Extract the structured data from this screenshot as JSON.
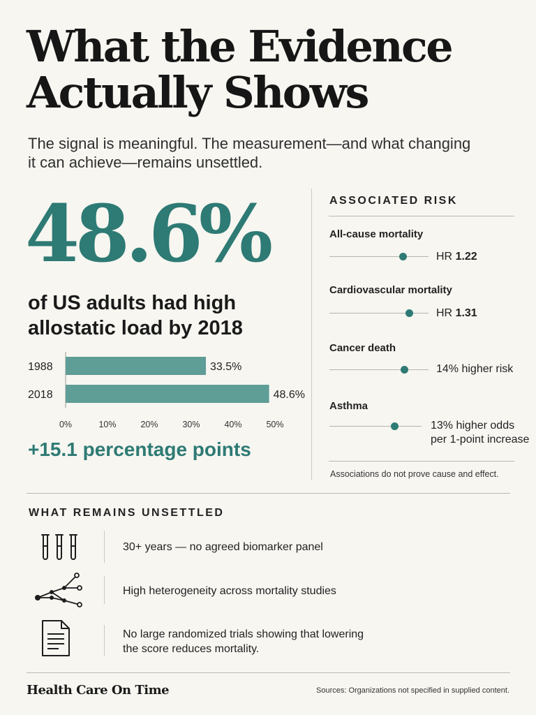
{
  "title": "What the Evidence Actually Shows",
  "subtitle": "The signal is meaningful. The measurement—and what changing it can achieve—remains unsettled.",
  "headline_stat": {
    "value": "48.6%",
    "caption": "of US adults had high allostatic load by 2018",
    "change": "+15.1 percentage points"
  },
  "chart_data": {
    "type": "bar",
    "orientation": "horizontal",
    "categories": [
      "1988",
      "2018"
    ],
    "values": [
      33.5,
      48.6
    ],
    "value_labels": [
      "33.5%",
      "48.6%"
    ],
    "x_ticks": [
      "0%",
      "10%",
      "20%",
      "30%",
      "40%",
      "50%"
    ],
    "xlim": [
      0,
      50
    ],
    "bar_color": "#5f9d97"
  },
  "risk": {
    "header": "ASSOCIATED RISK",
    "items": [
      {
        "label": "All-cause mortality",
        "value_prefix": "HR ",
        "value_bold": "1.22",
        "value_lines": []
      },
      {
        "label": "Cardiovascular mortality",
        "value_prefix": "HR ",
        "value_bold": "1.31",
        "value_lines": []
      },
      {
        "label": "Cancer death",
        "value_prefix": "",
        "value_bold": "",
        "value_lines": [
          "14% higher risk"
        ]
      },
      {
        "label": "Asthma",
        "value_prefix": "",
        "value_bold": "",
        "value_lines": [
          "13% higher odds",
          "per 1-point increase"
        ]
      }
    ],
    "note": "Associations do not prove cause and effect."
  },
  "unsettled": {
    "header": "WHAT REMAINS UNSETTLED",
    "items": [
      {
        "icon": "test-tubes-icon",
        "lines": [
          "30+ years — no agreed biomarker panel"
        ]
      },
      {
        "icon": "network-graph-icon",
        "lines": [
          "High heterogeneity across mortality studies"
        ]
      },
      {
        "icon": "document-icon",
        "lines": [
          "No large randomized trials showing that lowering",
          "the score reduces mortality."
        ]
      }
    ]
  },
  "footer": {
    "brand": "Health Care On Time",
    "sources": "Sources: Organizations not specified in supplied content."
  },
  "colors": {
    "accent": "#2e7a74",
    "bar": "#5f9d97",
    "background": "#f7f6f1"
  }
}
